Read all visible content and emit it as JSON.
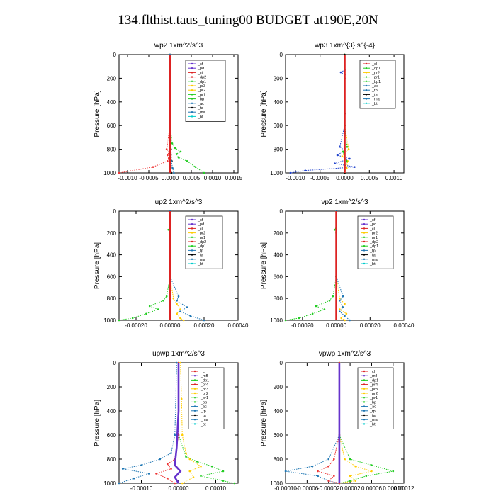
{
  "page_title": "134.flthist.taus_tuning00  BUDGET at190E,20N",
  "chart_data": [
    {
      "type": "line",
      "title": "wp2   1xm^2/s^3",
      "ylabel": "Pressure [hPa]",
      "xlim": [
        -0.0012,
        0.0016
      ],
      "ylim": [
        1000,
        0
      ],
      "xticks": [
        "-0.0010",
        "-0.0005",
        "0.0000",
        "0.0005",
        "0.0010",
        "0.0015"
      ],
      "xtick_values": [
        -0.001,
        -0.0005,
        0,
        0.0005,
        0.001,
        0.0015
      ],
      "yticks": [
        0,
        200,
        400,
        600,
        800,
        1000
      ],
      "legend": [
        "_sf",
        "_pd",
        "_cl",
        "_dp2",
        "_dp1",
        "_pr3",
        "_pr2",
        "_pr1",
        "_bp",
        "_ac",
        "_ta",
        "_ma",
        "_bt"
      ],
      "series": [
        {
          "name": "_pr1",
          "color": "#22cc22",
          "style": "dotted",
          "y": [
            0,
            200,
            600,
            750,
            790,
            820,
            840,
            870,
            900,
            950,
            1000
          ],
          "x": [
            0,
            0,
            0,
            5e-05,
            0.00012,
            0.00025,
            0.00015,
            0.0002,
            0.0004,
            0.0006,
            0.0008
          ]
        },
        {
          "name": "_dp1",
          "color": "#ee3333",
          "style": "dotted",
          "y": [
            0,
            600,
            800,
            820,
            850,
            880,
            900,
            950,
            1000
          ],
          "x": [
            0,
            0,
            -8e-05,
            -2e-05,
            -6e-05,
            -3e-05,
            -6e-05,
            -0.0004,
            -0.0012
          ]
        },
        {
          "name": "_ta",
          "color": "#000000",
          "style": "dotted",
          "y": [
            0,
            200,
            600,
            800,
            900,
            950,
            1000
          ],
          "x": [
            0,
            0,
            0,
            2e-05,
            4e-05,
            2e-05,
            3e-05
          ]
        },
        {
          "name": "_ac",
          "color": "#1f77b4",
          "style": "dotted",
          "y": [
            0,
            600,
            800,
            900,
            960,
            1000
          ],
          "x": [
            0,
            0,
            0,
            3e-05,
            6e-05,
            9e-05
          ]
        },
        {
          "name": "_sf",
          "color": "#6633cc",
          "style": "solid",
          "y": [
            0,
            500,
            1000
          ],
          "x": [
            0,
            0,
            0
          ]
        },
        {
          "name": "_bt",
          "color": "#00cccc",
          "style": "solid",
          "y": [
            0,
            500,
            1000
          ],
          "x": [
            0,
            0,
            0
          ]
        },
        {
          "name": "_cl",
          "color": "#dd2222",
          "style": "solid",
          "y": [
            0,
            500,
            1000
          ],
          "x": [
            0,
            0,
            0
          ]
        }
      ]
    },
    {
      "type": "line",
      "title": "wp3   1xm^{3} s^{-4}",
      "ylabel": "Pressure [hPa]",
      "xlim": [
        -0.0012,
        0.0012
      ],
      "ylim": [
        1000,
        0
      ],
      "xticks": [
        "-0.0010",
        "-0.0005",
        "0.0000",
        "0.0005",
        "0.0010"
      ],
      "xtick_values": [
        -0.001,
        -0.0005,
        0,
        0.0005,
        0.001
      ],
      "yticks": [
        0,
        200,
        400,
        600,
        800,
        1000
      ],
      "legend": [
        "_cl",
        "_dp1",
        "_pr2",
        "_pr1",
        "_bp1",
        "_ac",
        "_tp",
        "_ta",
        "_ma",
        "_bt"
      ],
      "series": [
        {
          "name": "_tp",
          "color": "#2244cc",
          "style": "dotted",
          "y": [
            0,
            130,
            150,
            170,
            200,
            600,
            780,
            810,
            850,
            880,
            920,
            950,
            980,
            1000
          ],
          "x": [
            0,
            0,
            -8e-05,
            0,
            0,
            0,
            -0.0001,
            0,
            -0.00015,
            0.0001,
            -0.0002,
            0.0002,
            -0.0008,
            -0.0011
          ]
        },
        {
          "name": "_pr2",
          "color": "#ffcc00",
          "style": "dotted",
          "y": [
            0,
            600,
            800,
            860,
            900,
            960,
            1000
          ],
          "x": [
            0,
            0,
            8e-05,
            -5e-05,
            6e-05,
            4e-05,
            0
          ]
        },
        {
          "name": "_ac",
          "color": "#22cc22",
          "style": "dotted",
          "y": [
            0,
            600,
            780,
            820,
            900,
            1000
          ],
          "x": [
            0,
            0,
            5e-05,
            -4e-05,
            4e-05,
            0
          ]
        },
        {
          "name": "_ta",
          "color": "#000000",
          "style": "dotted",
          "y": [
            0,
            500,
            1000
          ],
          "x": [
            0,
            0,
            0
          ]
        },
        {
          "name": "_cl",
          "color": "#dd2222",
          "style": "solid",
          "y": [
            0,
            500,
            1000
          ],
          "x": [
            0,
            0,
            0
          ]
        }
      ]
    },
    {
      "type": "line",
      "title": "up2   1xm^2/s^3",
      "ylabel": "Pressure [hPa]",
      "xlim": [
        -0.0003,
        0.0004
      ],
      "ylim": [
        1000,
        0
      ],
      "xticks": [
        "-0.00020",
        "0.00000",
        "0.00020",
        "0.00040"
      ],
      "xtick_values": [
        -0.0002,
        0,
        0.0002,
        0.0004
      ],
      "yticks": [
        0,
        200,
        400,
        600,
        800,
        1000
      ],
      "legend": [
        "_sf",
        "_pd",
        "_cl",
        "_pr2",
        "_pr1",
        "_dp2",
        "_dp1",
        "_tp",
        "_ta",
        "_ma",
        "_bt"
      ],
      "series": [
        {
          "name": "_dp1",
          "color": "#22cc22",
          "style": "dotted",
          "y": [
            0,
            150,
            170,
            200,
            600,
            780,
            820,
            870,
            900,
            940,
            980,
            1000
          ],
          "x": [
            0,
            0,
            -1e-05,
            0,
            0,
            -2e-05,
            -4e-05,
            -0.00012,
            -7e-05,
            -0.00014,
            -0.00022,
            -0.0003
          ]
        },
        {
          "name": "_pr2",
          "color": "#ffcc00",
          "style": "dotted",
          "y": [
            0,
            600,
            800,
            850,
            900,
            940,
            980,
            1000
          ],
          "x": [
            0,
            0,
            2e-05,
            4e-05,
            6e-05,
            4e-05,
            6e-05,
            8e-05
          ]
        },
        {
          "name": "_tp",
          "color": "#1f77b4",
          "style": "dotted",
          "y": [
            0,
            600,
            780,
            820,
            880,
            920,
            960,
            1000
          ],
          "x": [
            0,
            0,
            5e-05,
            4e-05,
            0.0001,
            6e-05,
            0.00012,
            0.0002
          ]
        },
        {
          "name": "_pd",
          "color": "#6633cc",
          "style": "solid",
          "y": [
            0,
            500,
            1000
          ],
          "x": [
            0,
            0,
            0
          ]
        },
        {
          "name": "_cl",
          "color": "#dd2222",
          "style": "solid",
          "y": [
            0,
            500,
            1000
          ],
          "x": [
            0,
            0,
            0
          ]
        }
      ]
    },
    {
      "type": "line",
      "title": "vp2   1xm^2/s^3",
      "ylabel": "Pressure [hPa]",
      "xlim": [
        -0.0003,
        0.0004
      ],
      "ylim": [
        1000,
        0
      ],
      "xticks": [
        "-0.00020",
        "0.00000",
        "0.00020",
        "0.00040"
      ],
      "xtick_values": [
        -0.0002,
        0,
        0.0002,
        0.0004
      ],
      "yticks": [
        0,
        200,
        400,
        600,
        800,
        1000
      ],
      "legend": [
        "_sf",
        "_pd",
        "_cl",
        "_pr2",
        "_pr1",
        "_dp2",
        "_dp1",
        "_tp",
        "_ta",
        "_ma",
        "_bt"
      ],
      "series": [
        {
          "name": "_dp1",
          "color": "#22cc22",
          "style": "dotted",
          "y": [
            0,
            150,
            170,
            200,
            600,
            780,
            820,
            870,
            900,
            940,
            980,
            1000
          ],
          "x": [
            0,
            0,
            -1e-05,
            0,
            0,
            -2e-05,
            -4e-05,
            -0.00012,
            -7e-05,
            -0.00014,
            -0.00022,
            -0.0003
          ]
        },
        {
          "name": "_pr2",
          "color": "#ffcc00",
          "style": "dotted",
          "y": [
            0,
            600,
            800,
            850,
            900,
            940,
            980,
            1000
          ],
          "x": [
            0,
            0,
            2e-05,
            5e-05,
            2e-05,
            6e-05,
            3e-05,
            5e-05
          ]
        },
        {
          "name": "_tp",
          "color": "#1f77b4",
          "style": "dotted",
          "y": [
            0,
            600,
            780,
            820,
            880,
            920,
            960,
            1000
          ],
          "x": [
            0,
            0,
            4e-05,
            2e-05,
            4e-05,
            2e-05,
            5e-05,
            8e-05
          ]
        },
        {
          "name": "_pd",
          "color": "#6633cc",
          "style": "solid",
          "y": [
            0,
            500,
            1000
          ],
          "x": [
            0,
            0,
            0
          ]
        },
        {
          "name": "_cl",
          "color": "#dd2222",
          "style": "solid",
          "y": [
            0,
            500,
            1000
          ],
          "x": [
            0,
            0,
            0
          ]
        }
      ]
    },
    {
      "type": "line",
      "title": "upwp   1xm^2/s^3",
      "ylabel": "Pressure [hPa]",
      "xlim": [
        -0.00016,
        0.00016
      ],
      "ylim": [
        1000,
        0
      ],
      "xticks": [
        "-0.00010",
        "0.00000",
        "0.00010"
      ],
      "xtick_values": [
        -0.0001,
        0,
        0.0001
      ],
      "yticks": [
        0,
        200,
        400,
        600,
        800,
        1000
      ],
      "legend": [
        "_cl",
        "_mfl",
        "_dp1",
        "_pr4",
        "_pr3",
        "_pr2",
        "_pr1",
        "_bp",
        "_ac",
        "_tp",
        "_ta",
        "_ma",
        "_bt"
      ],
      "series": [
        {
          "name": "_pr1",
          "color": "#ffcc00",
          "style": "dotted",
          "y": [
            0,
            300,
            600,
            750,
            800,
            860,
            900,
            950,
            1000
          ],
          "x": [
            5e-06,
            8e-06,
            1e-05,
            2e-05,
            3e-05,
            6e-05,
            3e-05,
            4e-05,
            1e-05
          ]
        },
        {
          "name": "_ac",
          "color": "#22cc22",
          "style": "dotted",
          "y": [
            0,
            600,
            780,
            820,
            860,
            900,
            940,
            980,
            1000
          ],
          "x": [
            0,
            0,
            2e-05,
            5e-05,
            9e-05,
            0.00012,
            6e-05,
            0.00012,
            0.00015
          ]
        },
        {
          "name": "_tp",
          "color": "#1f77b4",
          "style": "dotted",
          "y": [
            0,
            600,
            750,
            800,
            850,
            880,
            920,
            960,
            1000
          ],
          "x": [
            -5e-06,
            -1e-05,
            -2e-05,
            -5e-05,
            -0.0001,
            -0.00015,
            -8e-05,
            -0.00012,
            -0.00016
          ]
        },
        {
          "name": "_dp1",
          "color": "#ee3333",
          "style": "dotted",
          "y": [
            0,
            600,
            800,
            840,
            880,
            920,
            960,
            1000
          ],
          "x": [
            0,
            0,
            -1e-05,
            -3e-05,
            -2e-05,
            -6e-05,
            -3e-05,
            -1e-05
          ]
        },
        {
          "name": "_cl",
          "color": "#6633cc",
          "style": "solid",
          "y": [
            0,
            400,
            700,
            850,
            900,
            950,
            1000
          ],
          "x": [
            0,
            0,
            -5e-06,
            -1e-05,
            5e-06,
            -1e-05,
            0
          ]
        }
      ]
    },
    {
      "type": "line",
      "title": "vpwp   1xm^2/s^3",
      "ylabel": "Pressure [hPa]",
      "xlim": [
        -0.0001,
        0.00012
      ],
      "ylim": [
        1000,
        0
      ],
      "xticks": [
        "-0.00010",
        "-0.00006",
        "-0.00002",
        "0.00002",
        "0.00006",
        "0.00010",
        "0.00012"
      ],
      "xtick_values": [
        -0.0001,
        -6e-05,
        -2e-05,
        2e-05,
        6e-05,
        0.0001,
        0.00012
      ],
      "yticks": [
        0,
        200,
        400,
        600,
        800,
        1000
      ],
      "legend": [
        "_cl",
        "_mfl",
        "_dp1",
        "_pr4",
        "_pr3",
        "_pr2",
        "_pr1",
        "_bp",
        "_ac",
        "_tp",
        "_ta",
        "_ma",
        "_bt"
      ],
      "series": [
        {
          "name": "_pr1",
          "color": "#ffcc00",
          "style": "dotted",
          "y": [
            0,
            600,
            800,
            860,
            900,
            940,
            980,
            1000
          ],
          "x": [
            0,
            0,
            1e-05,
            3e-05,
            6e-05,
            2e-05,
            3e-05,
            0
          ]
        },
        {
          "name": "_ac",
          "color": "#22cc22",
          "style": "dotted",
          "y": [
            0,
            600,
            800,
            850,
            900,
            940,
            980,
            1000
          ],
          "x": [
            0,
            0,
            2e-05,
            6e-05,
            0.0001,
            5e-05,
            2e-05,
            0
          ]
        },
        {
          "name": "_tp",
          "color": "#1f77b4",
          "style": "dotted",
          "y": [
            0,
            600,
            800,
            860,
            900,
            940,
            980,
            1000
          ],
          "x": [
            0,
            0,
            -2e-05,
            -5e-05,
            -0.0001,
            -4e-05,
            -2e-05,
            0
          ]
        },
        {
          "name": "_dp1",
          "color": "#ee3333",
          "style": "dotted",
          "y": [
            0,
            600,
            800,
            860,
            900,
            940,
            980,
            1000
          ],
          "x": [
            0,
            0,
            -1e-05,
            -2e-05,
            -4e-05,
            -1e-05,
            -2e-05,
            0
          ]
        },
        {
          "name": "_cl",
          "color": "#6633cc",
          "style": "solid",
          "y": [
            0,
            500,
            1000
          ],
          "x": [
            0,
            0,
            0
          ]
        }
      ]
    }
  ]
}
